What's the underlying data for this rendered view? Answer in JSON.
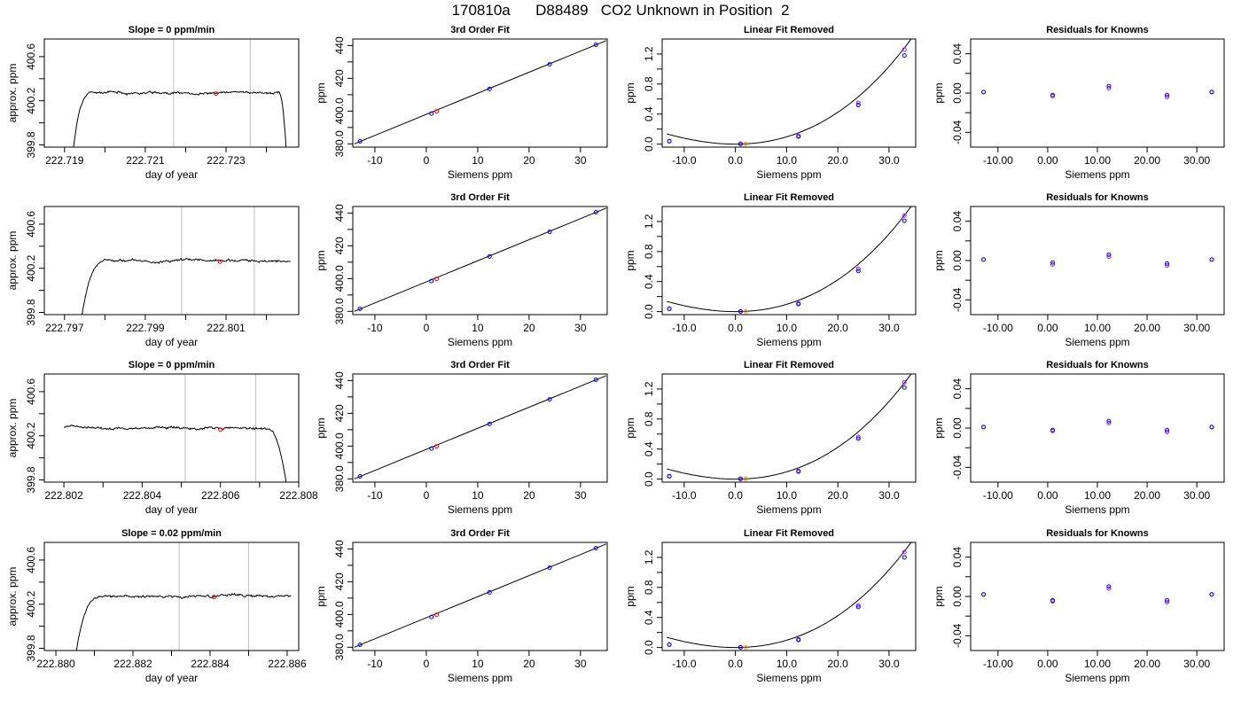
{
  "figure": {
    "title": "170810a      D88489   CO2 Unknown in Position  2"
  },
  "colors": {
    "trace": "#000000",
    "frame": "#000000",
    "window_line": "#c8c8c8",
    "sample_point": "#ff0000",
    "known_point_primary": "#0000ff",
    "known_point_secondary": "#a020f0",
    "unknown_point_fit": "#ff8c00",
    "unknown_point_trace": "#ff0000"
  },
  "chart_data": [
    {
      "type": "line",
      "panel": "time-series",
      "row": 1,
      "title": "Slope =  0  ppm/min",
      "xlabel": "day of year",
      "ylabel": "approx. ppm",
      "xlim": [
        222.7185,
        222.7248
      ],
      "ylim": [
        399.78,
        400.76
      ],
      "xticks": [
        222.719,
        222.721,
        222.723
      ],
      "xminor": [
        222.72,
        222.722,
        222.724
      ],
      "yticks": [
        399.8,
        400.2,
        400.6
      ],
      "yminor": [
        400.0,
        400.4
      ],
      "window": [
        222.7217,
        222.7236
      ],
      "trace": {
        "start": 222.7192,
        "rise_end": 222.7197,
        "end": 222.7245,
        "fall_start": 222.7243,
        "baseline": 399.7,
        "level": 400.27,
        "seed": 11
      },
      "sample_point": {
        "x": 222.72275,
        "y": 400.265
      }
    },
    {
      "type": "scatter",
      "panel": "calibration",
      "row": 1,
      "title": "3rd Order Fit",
      "xlabel": "Siemens ppm",
      "ylabel": "ppm",
      "xlim": [
        -14.3,
        35.2
      ],
      "ylim": [
        378,
        444
      ],
      "xticks": [
        -10,
        0,
        10,
        20,
        30
      ],
      "yticks": [
        380,
        400,
        420,
        440
      ],
      "yminor": [
        390,
        410,
        430
      ],
      "knowns_x": [
        -12.9,
        1,
        12.3,
        24,
        33
      ],
      "knowns_y": [
        381.5,
        398.5,
        413.5,
        428.5,
        440.5
      ],
      "unknown": {
        "x": 2.0,
        "y": 399.8
      },
      "fit_line": [
        [
          -14,
          380
        ],
        [
          35,
          443
        ]
      ]
    },
    {
      "type": "scatter",
      "panel": "linear-removed",
      "row": 1,
      "title": "Linear Fit Removed",
      "xlabel": "Siemens ppm",
      "ylabel": "ppm",
      "xlim": [
        -14.3,
        35.2
      ],
      "ylim": [
        -0.04,
        1.4
      ],
      "xticks": [
        -10,
        0,
        10,
        20,
        30
      ],
      "yticks": [
        0.0,
        0.4,
        0.8,
        1.2
      ],
      "yminor": [
        0.2,
        0.6,
        1.0
      ],
      "knowns_x": [
        -12.9,
        1,
        12.3,
        24,
        33
      ],
      "knowns_y_a": [
        0.04,
        0.005,
        0.1,
        0.52,
        1.18
      ],
      "knowns_y_b": [
        0.035,
        0.0,
        0.11,
        0.55,
        1.26
      ],
      "unknown": {
        "x": 2.0,
        "y": 0.003
      },
      "curve": {
        "a": 0.00088,
        "c": 9e-06,
        "x_end": 34.5
      }
    },
    {
      "type": "scatter",
      "panel": "residuals",
      "row": 1,
      "title": "Residuals for Knowns",
      "xlabel": "Siemens ppm",
      "ylabel": "ppm",
      "xlim": [
        -15.5,
        35.5
      ],
      "ylim": [
        -0.055,
        0.055
      ],
      "xticks": [
        -10,
        0,
        10,
        20,
        30
      ],
      "yticks": [
        -0.04,
        0.0,
        0.04
      ],
      "yminor": [
        -0.02,
        0.02
      ],
      "knowns_x": [
        -12.9,
        1,
        12.3,
        24,
        33
      ],
      "knowns_y_a": [
        0.001,
        -0.002,
        0.007,
        -0.002,
        0.001
      ],
      "knowns_y_b": [
        0.001,
        -0.003,
        0.005,
        -0.004,
        0.001
      ]
    },
    {
      "type": "line",
      "panel": "time-series",
      "row": 2,
      "title": "",
      "xlabel": "day of year",
      "ylabel": "approx. ppm",
      "xlim": [
        222.7965,
        222.8028
      ],
      "ylim": [
        399.78,
        400.76
      ],
      "xticks": [
        222.797,
        222.799,
        222.801
      ],
      "xminor": [
        222.798,
        222.8,
        222.802
      ],
      "yticks": [
        399.8,
        400.2,
        400.6
      ],
      "yminor": [
        400.0,
        400.4
      ],
      "window": [
        222.7999,
        222.8017
      ],
      "trace": {
        "start": 222.7974,
        "rise_end": 222.7981,
        "end": 222.8026,
        "fall_start": 222.8026,
        "baseline": 399.7,
        "level": 400.27,
        "seed": 23
      },
      "sample_point": {
        "x": 222.80085,
        "y": 400.26
      }
    },
    {
      "type": "scatter",
      "panel": "calibration",
      "row": 2,
      "title": "3rd Order Fit",
      "xlabel": "Siemens ppm",
      "ylabel": "ppm",
      "xlim": [
        -14.3,
        35.2
      ],
      "ylim": [
        378,
        444
      ],
      "xticks": [
        -10,
        0,
        10,
        20,
        30
      ],
      "yticks": [
        380,
        400,
        420,
        440
      ],
      "yminor": [
        390,
        410,
        430
      ],
      "knowns_x": [
        -12.9,
        1,
        12.3,
        24,
        33
      ],
      "knowns_y": [
        381.5,
        398.5,
        413.5,
        428.5,
        440.5
      ],
      "unknown": {
        "x": 2.0,
        "y": 399.8
      },
      "fit_line": [
        [
          -14,
          380
        ],
        [
          35,
          443
        ]
      ]
    },
    {
      "type": "scatter",
      "panel": "linear-removed",
      "row": 2,
      "title": "Linear Fit Removed",
      "xlabel": "Siemens ppm",
      "ylabel": "ppm",
      "xlim": [
        -14.3,
        35.2
      ],
      "ylim": [
        -0.04,
        1.4
      ],
      "xticks": [
        -10,
        0,
        10,
        20,
        30
      ],
      "yticks": [
        0.0,
        0.4,
        0.8,
        1.2
      ],
      "yminor": [
        0.2,
        0.6,
        1.0
      ],
      "knowns_x": [
        -12.9,
        1,
        12.3,
        24,
        33
      ],
      "knowns_y_a": [
        0.04,
        0.005,
        0.1,
        0.54,
        1.21
      ],
      "knowns_y_b": [
        0.035,
        0.0,
        0.11,
        0.57,
        1.28
      ],
      "unknown": {
        "x": 2.0,
        "y": 0.003
      },
      "curve": {
        "a": 0.00088,
        "c": 9e-06,
        "x_end": 34.5
      }
    },
    {
      "type": "scatter",
      "panel": "residuals",
      "row": 2,
      "title": "Residuals for Knowns",
      "xlabel": "Siemens ppm",
      "ylabel": "ppm",
      "xlim": [
        -15.5,
        35.5
      ],
      "ylim": [
        -0.055,
        0.055
      ],
      "xticks": [
        -10,
        0,
        10,
        20,
        30
      ],
      "yticks": [
        -0.04,
        0.0,
        0.04
      ],
      "yminor": [
        -0.02,
        0.02
      ],
      "knowns_x": [
        -12.9,
        1,
        12.3,
        24,
        33
      ],
      "knowns_y_a": [
        0.001,
        -0.002,
        0.006,
        -0.003,
        0.001
      ],
      "knowns_y_b": [
        0.001,
        -0.004,
        0.004,
        -0.005,
        0.001
      ]
    },
    {
      "type": "line",
      "panel": "time-series",
      "row": 3,
      "title": "Slope =  0  ppm/min",
      "xlabel": "day of year",
      "ylabel": "approx. ppm",
      "xlim": [
        222.8015,
        222.808
      ],
      "ylim": [
        399.78,
        400.76
      ],
      "xticks": [
        222.802,
        222.804,
        222.806,
        222.808
      ],
      "xminor": [
        222.803,
        222.805,
        222.807
      ],
      "yticks": [
        399.8,
        400.2,
        400.6
      ],
      "yminor": [
        400.0,
        400.4
      ],
      "window": [
        222.8051,
        222.8069
      ],
      "trace": {
        "start": 222.802,
        "rise_end": 222.802,
        "end": 222.80775,
        "fall_start": 222.8072,
        "baseline": 399.6,
        "level": 400.27,
        "seed": 37
      },
      "sample_point": {
        "x": 222.806,
        "y": 400.255
      }
    },
    {
      "type": "scatter",
      "panel": "calibration",
      "row": 3,
      "title": "3rd Order Fit",
      "xlabel": "Siemens ppm",
      "ylabel": "ppm",
      "xlim": [
        -14.3,
        35.2
      ],
      "ylim": [
        378,
        444
      ],
      "xticks": [
        -10,
        0,
        10,
        20,
        30
      ],
      "yticks": [
        380,
        400,
        420,
        440
      ],
      "yminor": [
        390,
        410,
        430
      ],
      "knowns_x": [
        -12.9,
        1,
        12.3,
        24,
        33
      ],
      "knowns_y": [
        381.5,
        398.5,
        413.5,
        428.5,
        440.5
      ],
      "unknown": {
        "x": 2.0,
        "y": 399.8
      },
      "fit_line": [
        [
          -14,
          380
        ],
        [
          35,
          443
        ]
      ]
    },
    {
      "type": "scatter",
      "panel": "linear-removed",
      "row": 3,
      "title": "Linear Fit Removed",
      "xlabel": "Siemens ppm",
      "ylabel": "ppm",
      "xlim": [
        -14.3,
        35.2
      ],
      "ylim": [
        -0.04,
        1.4
      ],
      "xticks": [
        -10,
        0,
        10,
        20,
        30
      ],
      "yticks": [
        0.0,
        0.4,
        0.8,
        1.2
      ],
      "yminor": [
        0.2,
        0.6,
        1.0
      ],
      "knowns_x": [
        -12.9,
        1,
        12.3,
        24,
        33
      ],
      "knowns_y_a": [
        0.04,
        0.005,
        0.1,
        0.54,
        1.22
      ],
      "knowns_y_b": [
        0.035,
        0.0,
        0.11,
        0.56,
        1.29
      ],
      "unknown": {
        "x": 2.0,
        "y": 0.003
      },
      "curve": {
        "a": 0.00088,
        "c": 9e-06,
        "x_end": 34.5
      }
    },
    {
      "type": "scatter",
      "panel": "residuals",
      "row": 3,
      "title": "Residuals for Knowns",
      "xlabel": "Siemens ppm",
      "ylabel": "ppm",
      "xlim": [
        -15.5,
        35.5
      ],
      "ylim": [
        -0.055,
        0.055
      ],
      "xticks": [
        -10,
        0,
        10,
        20,
        30
      ],
      "yticks": [
        -0.04,
        0.0,
        0.04
      ],
      "yminor": [
        -0.02,
        0.02
      ],
      "knowns_x": [
        -12.9,
        1,
        12.3,
        24,
        33
      ],
      "knowns_y_a": [
        0.001,
        -0.002,
        0.007,
        -0.002,
        0.001
      ],
      "knowns_y_b": [
        0.001,
        -0.003,
        0.005,
        -0.004,
        0.001
      ]
    },
    {
      "type": "line",
      "panel": "time-series",
      "row": 4,
      "title": "Slope =  0.02  ppm/min",
      "xlabel": "day of year",
      "ylabel": "approx. ppm",
      "xlim": [
        222.8797,
        222.8863
      ],
      "ylim": [
        399.78,
        400.76
      ],
      "xticks": [
        222.88,
        222.882,
        222.884,
        222.886
      ],
      "xminor": [
        222.881,
        222.883,
        222.885
      ],
      "yticks": [
        399.8,
        400.2,
        400.6
      ],
      "yminor": [
        400.0,
        400.4
      ],
      "window": [
        222.8832,
        222.885
      ],
      "trace": {
        "start": 222.8805,
        "rise_end": 222.8812,
        "end": 222.8861,
        "fall_start": 222.8861,
        "baseline": 399.7,
        "level": 400.27,
        "seed": 53
      },
      "sample_point": {
        "x": 222.8841,
        "y": 400.265
      }
    },
    {
      "type": "scatter",
      "panel": "calibration",
      "row": 4,
      "title": "3rd Order Fit",
      "xlabel": "Siemens ppm",
      "ylabel": "ppm",
      "xlim": [
        -14.3,
        35.2
      ],
      "ylim": [
        378,
        444
      ],
      "xticks": [
        -10,
        0,
        10,
        20,
        30
      ],
      "yticks": [
        380,
        400,
        420,
        440
      ],
      "yminor": [
        390,
        410,
        430
      ],
      "knowns_x": [
        -12.9,
        1,
        12.3,
        24,
        33
      ],
      "knowns_y": [
        381.5,
        398.5,
        413.5,
        428.5,
        440.5
      ],
      "unknown": {
        "x": 2.0,
        "y": 399.8
      },
      "fit_line": [
        [
          -14,
          380
        ],
        [
          35,
          443
        ]
      ]
    },
    {
      "type": "scatter",
      "panel": "linear-removed",
      "row": 4,
      "title": "Linear Fit Removed",
      "xlabel": "Siemens ppm",
      "ylabel": "ppm",
      "xlim": [
        -14.3,
        35.2
      ],
      "ylim": [
        -0.04,
        1.4
      ],
      "xticks": [
        -10,
        0,
        10,
        20,
        30
      ],
      "yticks": [
        0.0,
        0.4,
        0.8,
        1.2
      ],
      "yminor": [
        0.2,
        0.6,
        1.0
      ],
      "knowns_x": [
        -12.9,
        1,
        12.3,
        24,
        33
      ],
      "knowns_y_a": [
        0.04,
        0.005,
        0.1,
        0.54,
        1.2
      ],
      "knowns_y_b": [
        0.035,
        0.0,
        0.11,
        0.56,
        1.27
      ],
      "unknown": {
        "x": 2.0,
        "y": 0.003
      },
      "curve": {
        "a": 0.00088,
        "c": 9e-06,
        "x_end": 34.5
      }
    },
    {
      "type": "scatter",
      "panel": "residuals",
      "row": 4,
      "title": "Residuals for Knowns",
      "xlabel": "Siemens ppm",
      "ylabel": "ppm",
      "xlim": [
        -15.5,
        35.5
      ],
      "ylim": [
        -0.055,
        0.055
      ],
      "xticks": [
        -10,
        0,
        10,
        20,
        30
      ],
      "yticks": [
        -0.04,
        0.0,
        0.04
      ],
      "yminor": [
        -0.02,
        0.02
      ],
      "knowns_x": [
        -12.9,
        1,
        12.3,
        24,
        33
      ],
      "knowns_y_a": [
        0.002,
        -0.004,
        0.01,
        -0.004,
        0.002
      ],
      "knowns_y_b": [
        0.002,
        -0.005,
        0.008,
        -0.006,
        0.002
      ]
    }
  ]
}
